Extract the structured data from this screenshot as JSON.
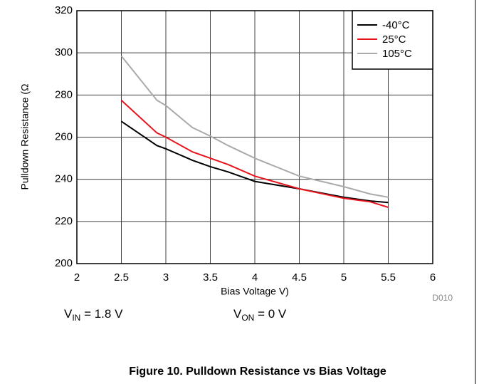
{
  "chart_data": {
    "type": "line",
    "title": "Figure 10. Pulldown Resistance vs Bias Voltage",
    "x_label": "Bias Voltage V)",
    "y_label": "Pulldown Resistance (Ω",
    "code": "D010",
    "annotations": [
      {
        "main": "V",
        "sub": "IN",
        "rest": " = 1.8 V"
      },
      {
        "main": "V",
        "sub": "ON",
        "rest": " = 0 V"
      }
    ],
    "x": [
      2.5,
      2.9,
      3,
      3.3,
      3.5,
      3.7,
      4,
      4.5,
      5,
      5.3,
      5.5
    ],
    "series": [
      {
        "name": "-40°C",
        "color": "#000000",
        "values": [
          267.5,
          256,
          254.5,
          249,
          246,
          243.5,
          239,
          235.5,
          231.5,
          229.7,
          229
        ]
      },
      {
        "name": "25°C",
        "color": "#e8141c",
        "values": [
          277.5,
          262,
          260,
          253,
          250,
          247,
          241.5,
          235.5,
          231,
          229.3,
          226.7
        ]
      },
      {
        "name": "105°C",
        "color": "#aaaaaa",
        "values": [
          298.5,
          277.5,
          275,
          264.5,
          260.5,
          256,
          250,
          241.5,
          236.5,
          233,
          231.5
        ]
      }
    ],
    "xlim": [
      2,
      6
    ],
    "xticks": [
      2,
      2.5,
      3,
      3.5,
      4,
      4.5,
      5,
      5.5,
      6
    ],
    "ylim": [
      200,
      320
    ],
    "yticks": [
      200,
      220,
      240,
      260,
      280,
      300,
      320
    ],
    "grid": true,
    "legend": "top-right"
  }
}
